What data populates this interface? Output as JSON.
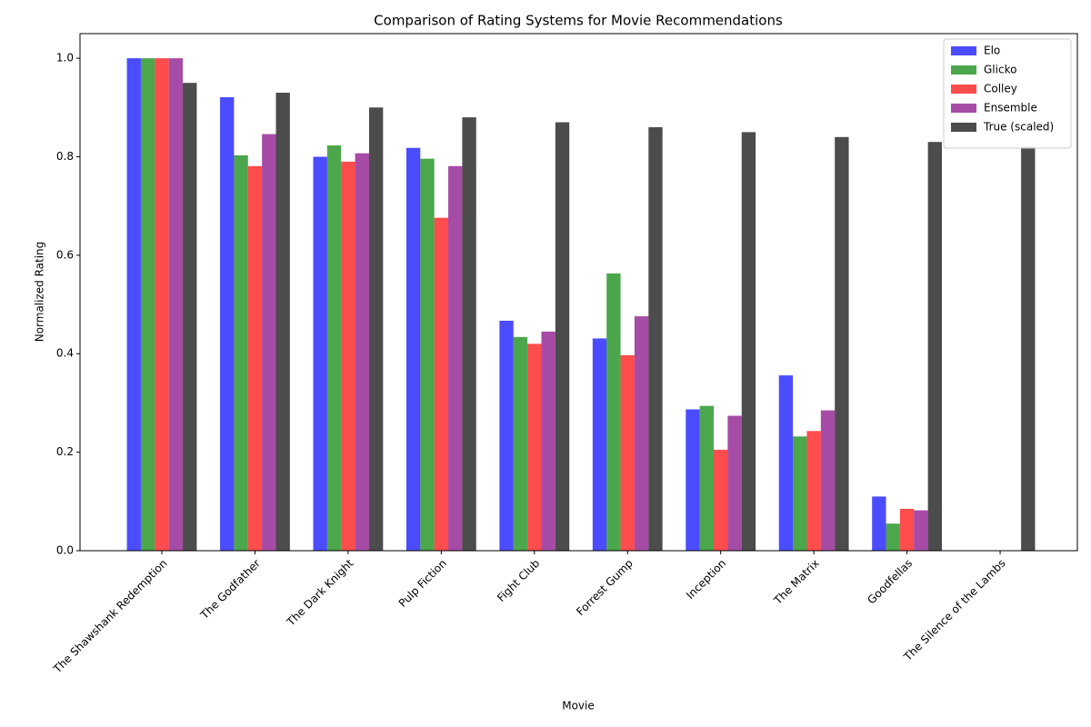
{
  "chart_data": {
    "type": "bar",
    "title": "Comparison of Rating Systems for Movie Recommendations",
    "xlabel": "Movie",
    "ylabel": "Normalized Rating",
    "categories": [
      "The Shawshank Redemption",
      "The Godfather",
      "The Dark Knight",
      "Pulp Fiction",
      "Fight Club",
      "Forrest Gump",
      "Inception",
      "The Matrix",
      "Goodfellas",
      "The Silence of the Lambs"
    ],
    "series": [
      {
        "name": "Elo",
        "color": "#0000ff",
        "values": [
          1.0,
          0.921,
          0.8,
          0.818,
          0.467,
          0.431,
          0.287,
          0.356,
          0.11,
          0.0
        ]
      },
      {
        "name": "Glicko",
        "color": "#008000",
        "values": [
          1.0,
          0.803,
          0.823,
          0.796,
          0.434,
          0.563,
          0.294,
          0.232,
          0.055,
          0.0
        ]
      },
      {
        "name": "Colley",
        "color": "#ff0000",
        "values": [
          1.0,
          0.781,
          0.79,
          0.676,
          0.42,
          0.397,
          0.205,
          0.243,
          0.085,
          0.0
        ]
      },
      {
        "name": "Ensemble",
        "color": "#800080",
        "values": [
          1.0,
          0.846,
          0.807,
          0.781,
          0.445,
          0.476,
          0.274,
          0.285,
          0.082,
          0.0
        ]
      },
      {
        "name": "True (scaled)",
        "color": "#000000",
        "values": [
          0.95,
          0.93,
          0.9,
          0.88,
          0.87,
          0.86,
          0.85,
          0.84,
          0.83,
          0.82
        ]
      }
    ],
    "opacity": 0.7,
    "ylim": [
      0,
      1.05
    ],
    "yticks": [
      {
        "value": 0,
        "label": "0.0"
      },
      {
        "value": 0.2,
        "label": "0.2"
      },
      {
        "value": 0.4,
        "label": "0.4"
      },
      {
        "value": 0.6,
        "label": "0.6"
      },
      {
        "value": 0.8,
        "label": "0.8"
      },
      {
        "value": 1.0,
        "label": "1.0"
      }
    ],
    "grid": false,
    "legend": "upper right"
  }
}
